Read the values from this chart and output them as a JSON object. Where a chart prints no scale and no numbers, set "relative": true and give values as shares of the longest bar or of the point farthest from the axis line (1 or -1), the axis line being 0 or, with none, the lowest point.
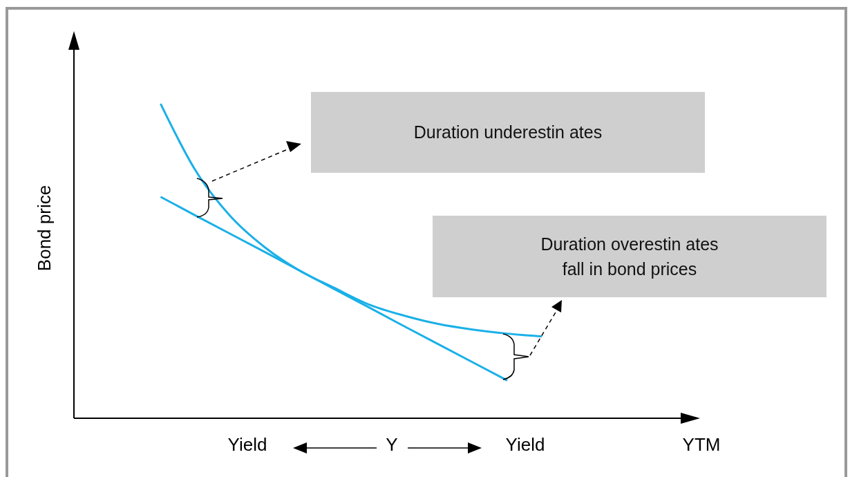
{
  "chart_data": {
    "type": "line",
    "relative": true,
    "xlabel": "YTM",
    "ylabel": "Bond price",
    "categories": [
      null,
      null,
      null,
      null,
      null,
      null,
      null,
      null,
      null,
      null,
      null,
      null,
      null,
      null,
      null,
      null,
      null,
      null
    ],
    "series": [
      {
        "color": "#1ab0e8",
        "values": [
          null,
          null,
          1.0,
          0.789,
          0.644,
          0.544,
          0.47,
          0.415,
          0.362,
          0.327,
          0.3,
          0.282,
          0.269,
          0.26,
          null,
          null,
          null,
          null
        ]
      },
      {
        "color": "#1ab0e8",
        "values": [
          null,
          null,
          0.704,
          0.645,
          0.587,
          0.529,
          0.47,
          0.411,
          0.353,
          0.294,
          0.236,
          0.178,
          0.12,
          null,
          null,
          null,
          null,
          null
        ]
      }
    ],
    "annotations": [
      "Duration underestin ates",
      "Duration overestin ates fall in bond prices",
      "Yield",
      "Y",
      "Yield"
    ],
    "line_style": "solid"
  }
}
